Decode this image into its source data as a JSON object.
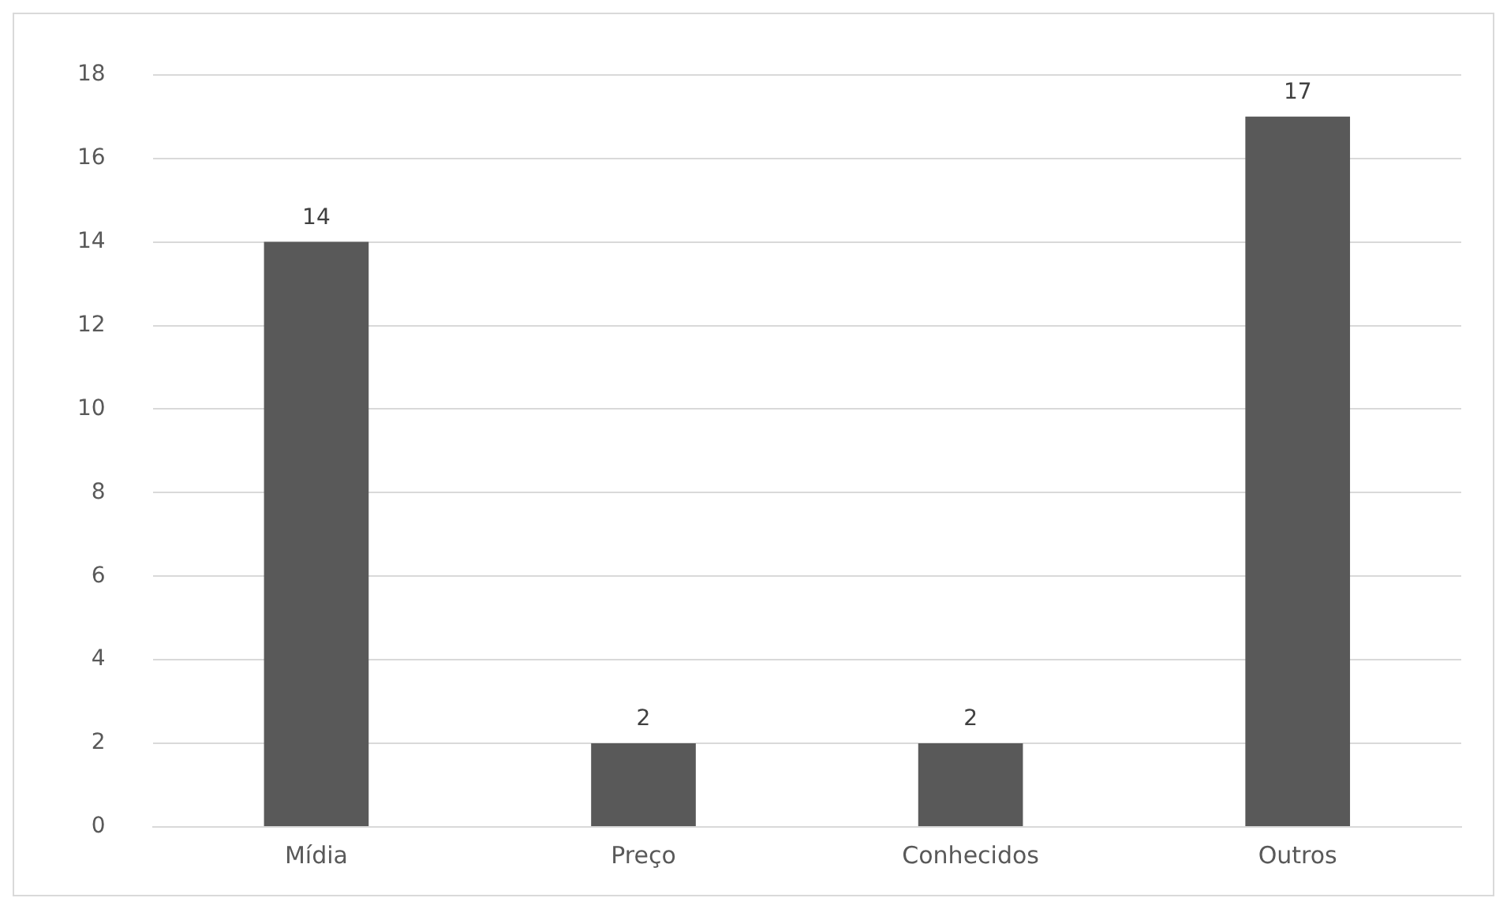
{
  "chart_data": {
    "type": "bar",
    "categories": [
      "Mídia",
      "Preço",
      "Conhecidos",
      "Outros"
    ],
    "values": [
      14,
      2,
      2,
      17
    ],
    "color": "#595959",
    "ylim": [
      0,
      18
    ],
    "yticks": [
      0,
      2,
      4,
      6,
      8,
      10,
      12,
      14,
      16,
      18
    ],
    "grid": "y",
    "data_labels": true,
    "legend": false
  }
}
